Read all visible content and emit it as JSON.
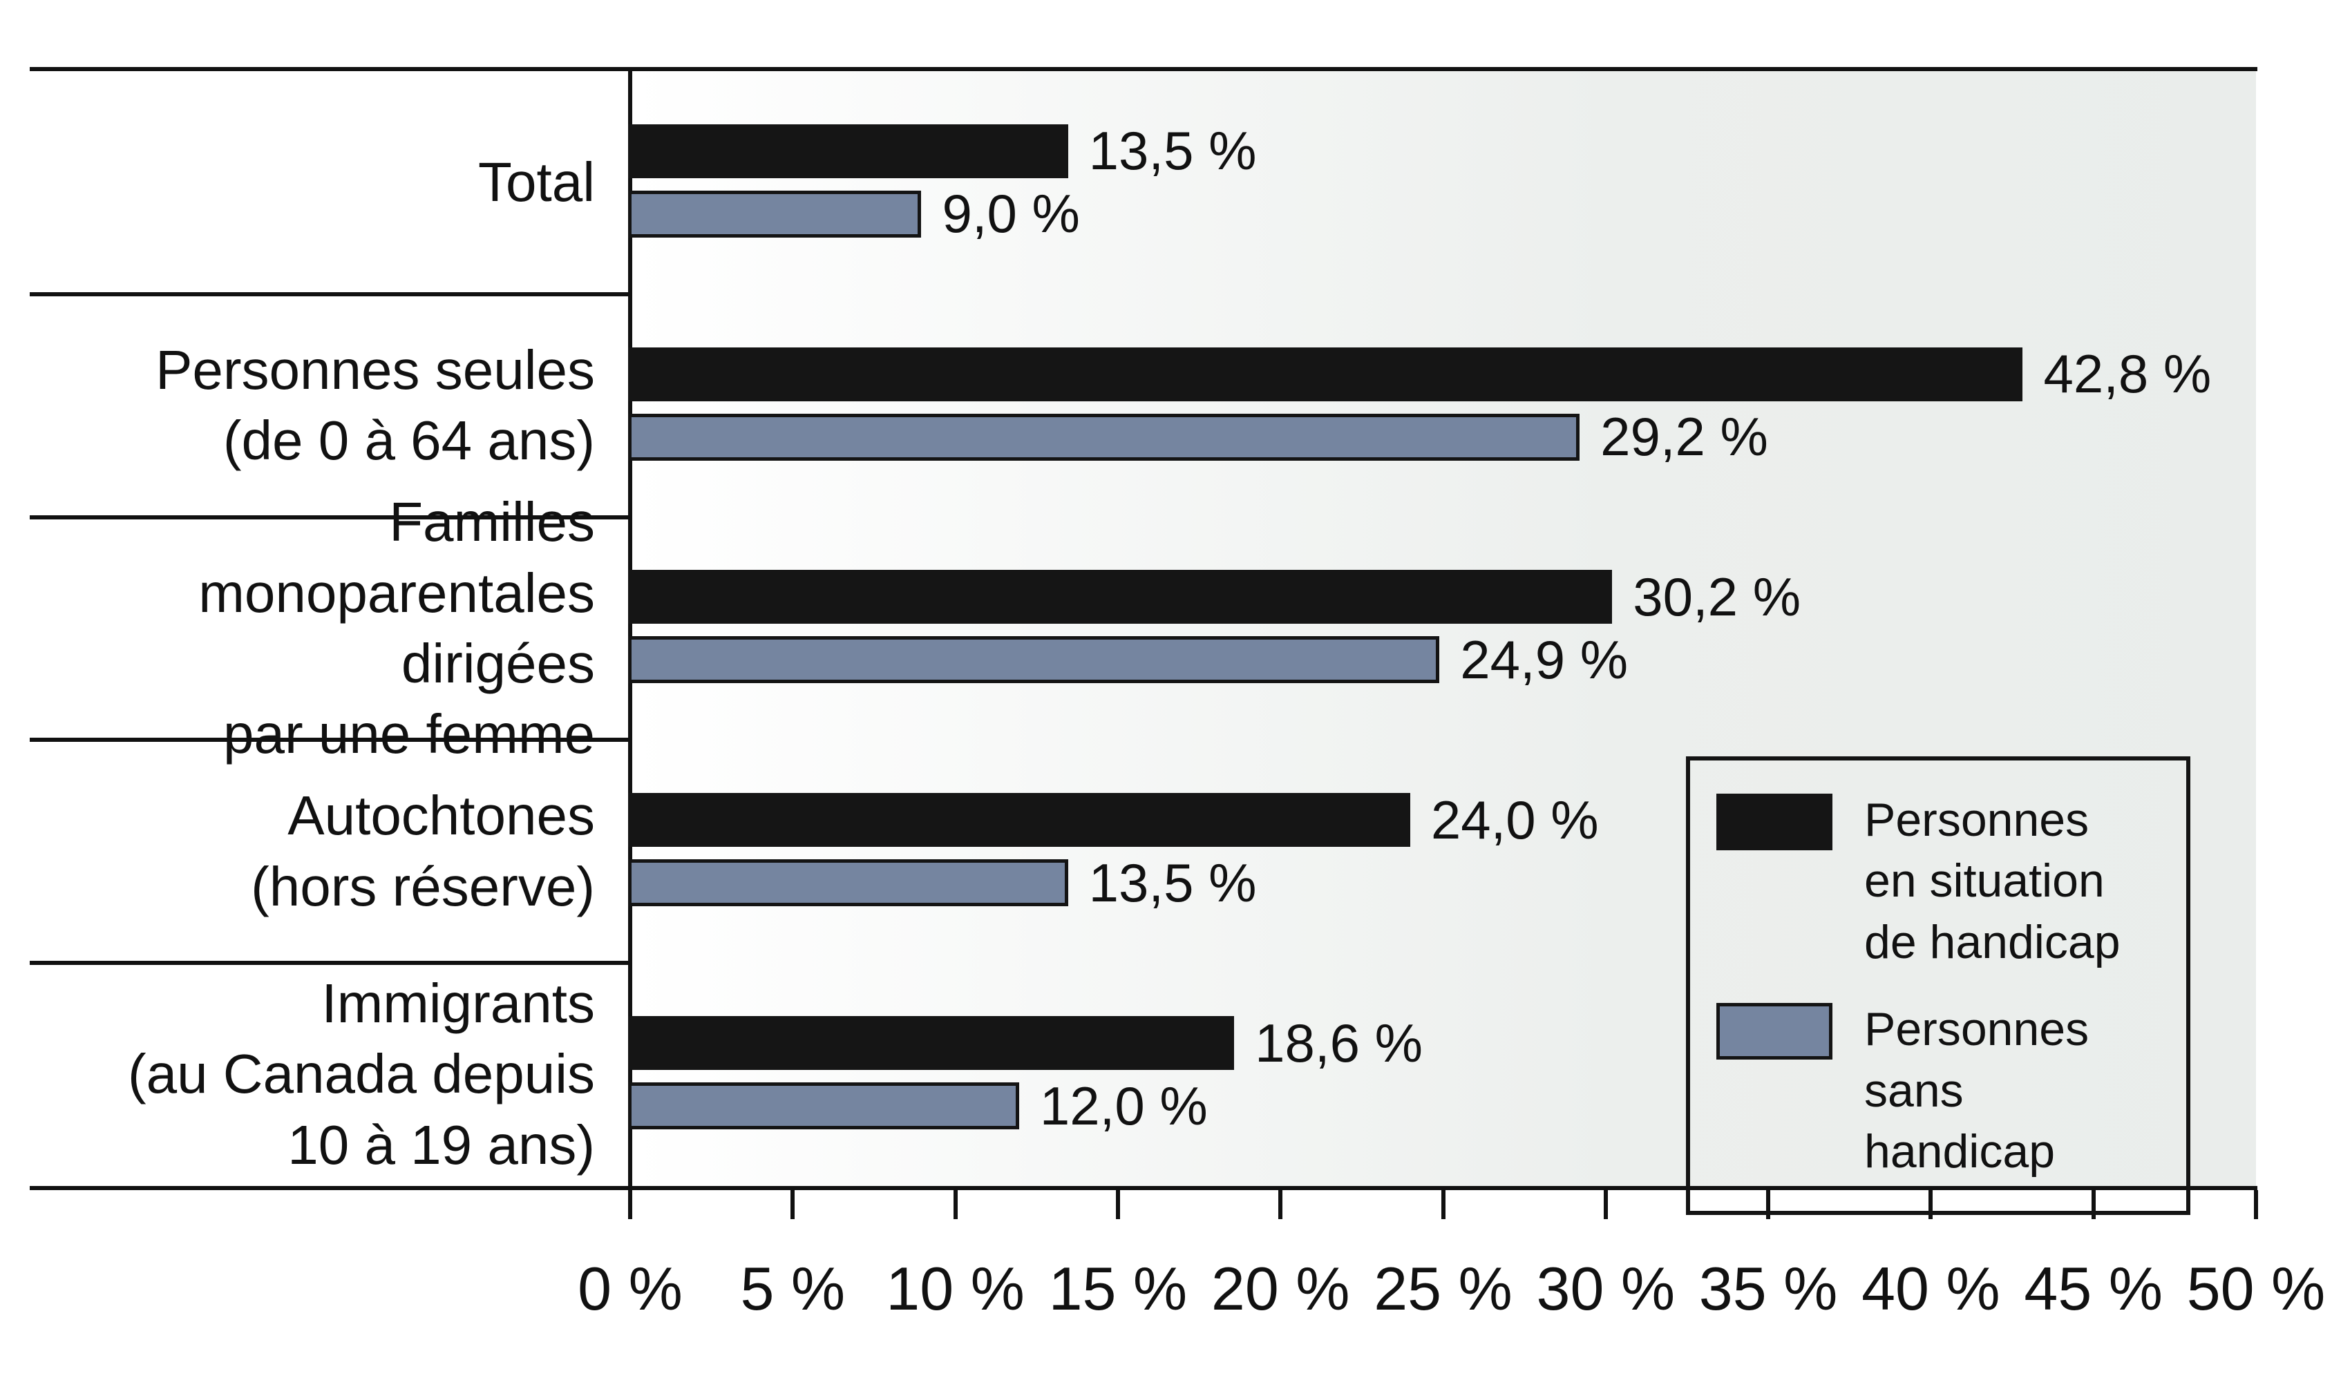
{
  "chart_data": {
    "type": "bar",
    "orientation": "horizontal",
    "title": "",
    "xlim": [
      0,
      50
    ],
    "grid": false,
    "x_axis": {
      "ticks": [
        "0 %",
        "5 %",
        "10 %",
        "15 %",
        "20 %",
        "25 %",
        "30 %",
        "35 %",
        "40 %",
        "45 %",
        "50 %"
      ]
    },
    "categories": [
      {
        "label_lines": [
          "Total"
        ]
      },
      {
        "label_lines": [
          "Personnes seules",
          "(de 0 à 64 ans)"
        ]
      },
      {
        "label_lines": [
          "Familles",
          "monoparentales dirigées",
          "par une femme"
        ]
      },
      {
        "label_lines": [
          "Autochtones",
          "(hors réserve)"
        ]
      },
      {
        "label_lines": [
          "Immigrants",
          "(au Canada depuis",
          "10 à 19 ans)"
        ]
      }
    ],
    "series": [
      {
        "name": "Personnes en situation de handicap",
        "color": "#151515",
        "bordered": false,
        "values": [
          13.5,
          42.8,
          30.2,
          24.0,
          18.6
        ],
        "value_labels": [
          "13,5 %",
          "42,8 %",
          "30,2 %",
          "24,0 %",
          "18,6 %"
        ]
      },
      {
        "name": "Personnes sans handicap",
        "color": "#7585a0",
        "bordered": true,
        "values": [
          9.0,
          29.2,
          24.9,
          13.5,
          12.0
        ],
        "value_labels": [
          "9,0 %",
          "29,2 %",
          "24,9 %",
          "13,5 %",
          "12,0 %"
        ]
      }
    ],
    "legend": {
      "position": "inside-right",
      "items": [
        {
          "series": 0,
          "color": "#151515",
          "bordered": false,
          "label_lines": [
            "Personnes",
            "en situation",
            "de handicap"
          ]
        },
        {
          "series": 1,
          "color": "#7585a0",
          "bordered": true,
          "label_lines": [
            "Personnes sans",
            "handicap"
          ]
        }
      ]
    },
    "colors": {
      "bar_dark": "#151515",
      "bar_gray_blue": "#7585a0",
      "plot_gradient_start": "#ffffff",
      "plot_gradient_end": "#eaedeb",
      "line": "#111111"
    }
  }
}
